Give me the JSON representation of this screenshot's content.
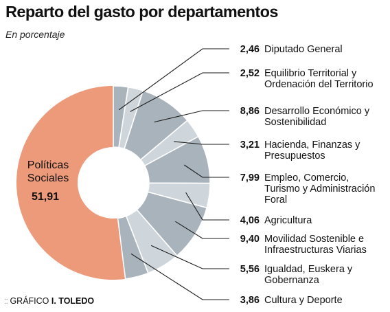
{
  "header": {
    "title": "Reparto del gasto por departamentos",
    "subtitle": "En porcentaje"
  },
  "credit": {
    "dots": "::",
    "prefix": "GRÁFICO",
    "author": "I. TOLEDO"
  },
  "colors": {
    "highlight": "#ec9a7a",
    "slice_dark": "#a9b3bb",
    "slice_light": "#cfd6db",
    "leader": "#1a1a1a"
  },
  "chart_data": {
    "type": "pie",
    "style": "donut",
    "title": "Reparto del gasto por departamentos",
    "subtitle": "En porcentaje",
    "highlight": {
      "label_lines": [
        "Políticas",
        "Sociales"
      ],
      "value_text": "51,91",
      "value": 51.91
    },
    "slices": [
      {
        "value": 2.46,
        "value_text": "2,46",
        "label_lines": [
          "Diputado General"
        ],
        "shade": "dark"
      },
      {
        "value": 2.52,
        "value_text": "2,52",
        "label_lines": [
          "Equilibrio Territorial y",
          "Ordenación del Territorio"
        ],
        "shade": "light"
      },
      {
        "value": 8.86,
        "value_text": "8,86",
        "label_lines": [
          "Desarrollo Económico y",
          "Sostenibilidad"
        ],
        "shade": "dark"
      },
      {
        "value": 3.21,
        "value_text": "3,21",
        "label_lines": [
          "Hacienda, Finanzas y",
          "Presupuestos"
        ],
        "shade": "light"
      },
      {
        "value": 7.99,
        "value_text": "7,99",
        "label_lines": [
          "Empleo, Comercio,",
          "Turismo y Administración",
          "Foral"
        ],
        "shade": "dark"
      },
      {
        "value": 4.06,
        "value_text": "4,06",
        "label_lines": [
          "Agricultura"
        ],
        "shade": "light"
      },
      {
        "value": 9.4,
        "value_text": "9,40",
        "label_lines": [
          "Movilidad Sostenible e",
          "Infraestructuras Viarias"
        ],
        "shade": "dark"
      },
      {
        "value": 5.56,
        "value_text": "5,56",
        "label_lines": [
          "Igualdad, Euskera y",
          "Gobernanza"
        ],
        "shade": "light"
      },
      {
        "value": 3.86,
        "value_text": "3,86",
        "label_lines": [
          "Cultura y Deporte"
        ],
        "shade": "dark"
      }
    ]
  }
}
